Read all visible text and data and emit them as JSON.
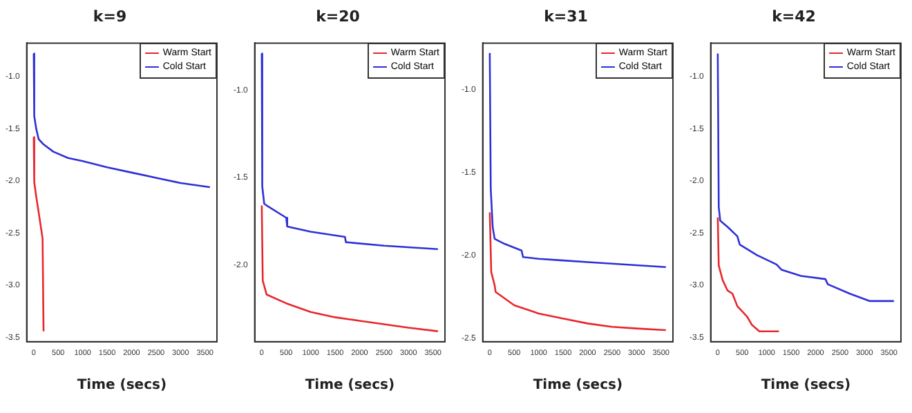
{
  "chart_data": [
    {
      "type": "line",
      "title": "k=9",
      "xlabel": "Time (secs)",
      "xlim": [
        -144,
        3744
      ],
      "ylim": [
        -3.54,
        -0.68
      ],
      "xticks": [
        0,
        500,
        1000,
        1500,
        2000,
        2500,
        3000,
        3500
      ],
      "yticks": [
        -3.5,
        {
          "value": -3,
          "label": "-3.0"
        },
        -2.5,
        {
          "value": -2,
          "label": "-2.0"
        },
        -1.5,
        {
          "value": -1,
          "label": "-1.0"
        }
      ],
      "legend": "top right",
      "grid": false,
      "series": [
        {
          "name": "Warm Start",
          "color": "#e8262c",
          "x": [
            0,
            10,
            50,
            100,
            180,
            200
          ],
          "values": [
            -1.58,
            -2.01,
            -2.15,
            -2.3,
            -2.55,
            -3.44
          ]
        },
        {
          "name": "Cold Start",
          "color": "#2f2fd8",
          "x": [
            0,
            10,
            50,
            100,
            200,
            400,
            700,
            1000,
            1500,
            2000,
            2500,
            3000,
            3600
          ],
          "values": [
            -0.78,
            -1.38,
            -1.5,
            -1.6,
            -1.65,
            -1.72,
            -1.78,
            -1.81,
            -1.87,
            -1.92,
            -1.97,
            -2.02,
            -2.06
          ]
        }
      ]
    },
    {
      "type": "line",
      "title": "k=20",
      "xlabel": "Time (secs)",
      "xlim": [
        -144,
        3744
      ],
      "ylim": [
        -2.44,
        -0.73
      ],
      "xticks": [
        0,
        500,
        1000,
        1500,
        2000,
        2500,
        3000,
        3500
      ],
      "yticks": [
        {
          "value": -2,
          "label": "-2.0"
        },
        -1.5,
        {
          "value": -1,
          "label": "-1.0"
        }
      ],
      "legend": "top right",
      "grid": false,
      "series": [
        {
          "name": "Warm Start",
          "color": "#e8262c",
          "x": [
            0,
            20,
            100,
            500,
            1000,
            1500,
            2000,
            2500,
            3000,
            3600
          ],
          "values": [
            -1.66,
            -2.09,
            -2.17,
            -2.22,
            -2.27,
            -2.3,
            -2.32,
            -2.34,
            -2.36,
            -2.38
          ]
        },
        {
          "name": "Cold Start",
          "color": "#2f2fd8",
          "x": [
            0,
            10,
            50,
            100,
            500,
            520,
            1000,
            1700,
            1720,
            2500,
            3600
          ],
          "values": [
            -0.79,
            -1.55,
            -1.65,
            -1.66,
            -1.73,
            -1.78,
            -1.81,
            -1.84,
            -1.87,
            -1.89,
            -1.91
          ]
        }
      ]
    },
    {
      "type": "line",
      "title": "k=31",
      "xlabel": "Time (secs)",
      "xlim": [
        -144,
        3744
      ],
      "ylim": [
        -2.52,
        -0.72
      ],
      "xticks": [
        0,
        500,
        1000,
        1500,
        2000,
        2500,
        3000,
        3500
      ],
      "yticks": [
        -2.5,
        {
          "value": -2,
          "label": "-2.0"
        },
        -1.5,
        {
          "value": -1,
          "label": "-1.0"
        }
      ],
      "legend": "top right",
      "grid": false,
      "series": [
        {
          "name": "Warm Start",
          "color": "#e8262c",
          "x": [
            0,
            30,
            100,
            120,
            500,
            1000,
            1500,
            2000,
            2500,
            3000,
            3600
          ],
          "values": [
            -1.74,
            -2.1,
            -2.18,
            -2.22,
            -2.3,
            -2.35,
            -2.38,
            -2.41,
            -2.43,
            -2.44,
            -2.45
          ]
        },
        {
          "name": "Cold Start",
          "color": "#2f2fd8",
          "x": [
            0,
            20,
            60,
            100,
            300,
            650,
            680,
            1000,
            1500,
            2000,
            3600
          ],
          "values": [
            -0.78,
            -1.6,
            -1.83,
            -1.9,
            -1.93,
            -1.97,
            -2.01,
            -2.02,
            -2.03,
            -2.04,
            -2.07
          ]
        }
      ]
    },
    {
      "type": "line",
      "title": "k=42",
      "xlabel": "Time (secs)",
      "xlim": [
        -144,
        3744
      ],
      "ylim": [
        -3.54,
        -0.68
      ],
      "xticks": [
        0,
        500,
        1000,
        1500,
        2000,
        2500,
        3000,
        3500
      ],
      "yticks": [
        -3.5,
        {
          "value": -3,
          "label": "-3.0"
        },
        -2.5,
        {
          "value": -2,
          "label": "-2.0"
        },
        -1.5,
        {
          "value": -1,
          "label": "-1.0"
        }
      ],
      "legend": "top right",
      "grid": false,
      "series": [
        {
          "name": "Warm Start",
          "color": "#e8262c",
          "x": [
            0,
            20,
            100,
            200,
            300,
            400,
            500,
            600,
            700,
            850,
            1250
          ],
          "values": [
            -2.35,
            -2.81,
            -2.95,
            -3.05,
            -3.08,
            -3.2,
            -3.25,
            -3.3,
            -3.38,
            -3.44,
            -3.44
          ]
        },
        {
          "name": "Cold Start",
          "color": "#2f2fd8",
          "x": [
            0,
            20,
            50,
            200,
            400,
            450,
            800,
            1200,
            1300,
            1700,
            2200,
            2250,
            2700,
            3100,
            3600
          ],
          "values": [
            -0.78,
            -2.25,
            -2.38,
            -2.44,
            -2.53,
            -2.61,
            -2.71,
            -2.8,
            -2.85,
            -2.91,
            -2.94,
            -2.99,
            -3.08,
            -3.15,
            -3.15
          ]
        }
      ]
    }
  ]
}
